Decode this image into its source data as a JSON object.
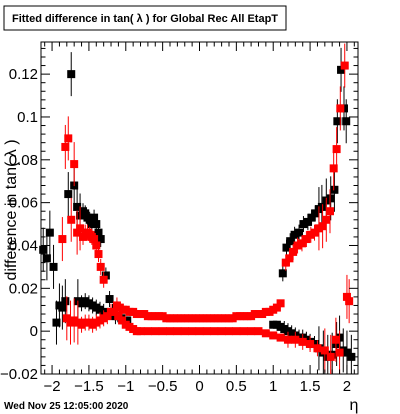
{
  "footer": {
    "timestamp": "Wed Nov 25 12:05:00 2020"
  },
  "chart_data": {
    "type": "scatter",
    "title": "Fitted difference in tan( λ ) for Global Rec All EtapT",
    "xlabel": "η",
    "ylabel": "difference in tan( λ )",
    "xlim": [
      -2.15,
      2.15
    ],
    "ylim": [
      -0.02,
      0.135
    ],
    "x_ticks": [
      -2,
      -1.5,
      -1,
      -0.5,
      0,
      0.5,
      1,
      1.5,
      2
    ],
    "x_tick_labels": [
      "−2",
      "−1.5",
      "−1",
      "−0.5",
      "0",
      "0.5",
      "1",
      "1.5",
      "2"
    ],
    "y_ticks": [
      -0.02,
      0,
      0.02,
      0.04,
      0.06,
      0.08,
      0.1,
      0.12
    ],
    "y_tick_labels": [
      "−0.02",
      "0",
      "0.02",
      "0.04",
      "0.06",
      "0.08",
      "0.1",
      "0.12"
    ],
    "grid": false,
    "legend": "none",
    "colors": {
      "black_series": "#000000",
      "red_series": "#ff0000"
    },
    "series": [
      {
        "color": "#000000",
        "points": [
          [
            -2.12,
            0.038
          ],
          [
            -2.07,
            0.034
          ],
          [
            -2.03,
            0.046
          ],
          [
            -1.98,
            0.03
          ],
          [
            -1.94,
            0.004
          ],
          [
            -1.9,
            0.012
          ],
          [
            -1.86,
            0.011
          ],
          [
            -1.82,
            0.014
          ],
          [
            -1.78,
            0.064
          ],
          [
            -1.74,
            0.12
          ],
          [
            -1.7,
            0.068
          ],
          [
            -1.66,
            0.058
          ],
          [
            -1.62,
            0.054
          ],
          [
            -1.58,
            0.056
          ],
          [
            -1.55,
            0.055
          ],
          [
            -1.52,
            0.053
          ],
          [
            -1.49,
            0.052
          ],
          [
            -1.46,
            0.05
          ],
          [
            -1.43,
            0.053
          ],
          [
            -1.4,
            0.05
          ],
          [
            -1.37,
            0.046
          ],
          [
            -1.34,
            0.043
          ],
          [
            -1.27,
            0.026
          ],
          [
            -1.22,
            0.015
          ],
          [
            -1.18,
            0.009
          ],
          [
            -1.14,
            0.007
          ],
          [
            -1.1,
            0.007
          ],
          [
            -1.06,
            0.006
          ],
          [
            -1.02,
            0.005
          ],
          [
            -0.98,
            0.005
          ],
          [
            1.0,
            0.003
          ],
          [
            1.05,
            0.003
          ],
          [
            1.1,
            0.002
          ],
          [
            1.15,
            0.001
          ],
          [
            1.2,
            0.0
          ],
          [
            1.25,
            -0.001
          ],
          [
            1.3,
            -0.002
          ],
          [
            1.35,
            -0.003
          ],
          [
            1.4,
            -0.003
          ],
          [
            1.45,
            -0.004
          ],
          [
            1.5,
            -0.005
          ],
          [
            1.56,
            -0.006
          ],
          [
            1.62,
            -0.008
          ],
          [
            1.68,
            -0.01
          ],
          [
            1.74,
            -0.012
          ],
          [
            1.8,
            -0.011
          ],
          [
            1.86,
            -0.006
          ],
          [
            1.9,
            -0.003
          ],
          [
            1.95,
            -0.009
          ],
          [
            2.0,
            -0.01
          ],
          [
            2.06,
            -0.012
          ],
          [
            -1.65,
            0.014
          ],
          [
            -1.6,
            0.013
          ],
          [
            -1.55,
            0.014
          ],
          [
            -1.5,
            0.013
          ],
          [
            -1.45,
            0.012
          ],
          [
            -1.4,
            0.011
          ],
          [
            -1.35,
            0.01
          ],
          [
            -1.3,
            0.009
          ],
          [
            1.13,
            0.027
          ],
          [
            1.18,
            0.039
          ],
          [
            1.23,
            0.042
          ],
          [
            1.29,
            0.045
          ],
          [
            1.35,
            0.046
          ],
          [
            1.41,
            0.05
          ],
          [
            1.47,
            0.051
          ],
          [
            1.52,
            0.053
          ],
          [
            1.57,
            0.055
          ],
          [
            1.62,
            0.057
          ],
          [
            1.66,
            0.058
          ],
          [
            1.72,
            0.061
          ],
          [
            1.78,
            0.062
          ],
          [
            1.83,
            0.066
          ],
          [
            1.87,
            0.098
          ],
          [
            1.92,
            0.122
          ],
          [
            1.96,
            0.104
          ],
          [
            1.99,
            0.098
          ]
        ]
      },
      {
        "color": "#ff0000",
        "points": [
          [
            -1.86,
            0.043
          ],
          [
            -1.82,
            0.086
          ],
          [
            -1.78,
            0.09
          ],
          [
            -1.74,
            0.052
          ],
          [
            -1.7,
            0.078
          ],
          [
            -1.66,
            0.046
          ],
          [
            -1.62,
            0.048
          ],
          [
            -1.58,
            0.044
          ],
          [
            -1.55,
            0.046
          ],
          [
            -1.52,
            0.046
          ],
          [
            -1.49,
            0.045
          ],
          [
            -1.46,
            0.044
          ],
          [
            -1.43,
            0.043
          ],
          [
            -1.4,
            0.04
          ],
          [
            -1.37,
            0.036
          ],
          [
            -1.34,
            0.03
          ],
          [
            -1.3,
            0.024
          ],
          [
            -1.8,
            0.006
          ],
          [
            -1.75,
            0.004
          ],
          [
            -1.7,
            0.005
          ],
          [
            -1.65,
            0.004
          ],
          [
            -1.6,
            0.003
          ],
          [
            -1.55,
            0.004
          ],
          [
            -1.5,
            0.004
          ],
          [
            -1.45,
            0.003
          ],
          [
            -1.4,
            0.004
          ],
          [
            -1.35,
            0.005
          ],
          [
            -1.3,
            0.006
          ],
          [
            -1.25,
            0.007
          ],
          [
            -1.2,
            0.009
          ],
          [
            -1.15,
            0.009
          ],
          [
            -1.1,
            0.007
          ],
          [
            -1.05,
            0.005
          ],
          [
            -1.0,
            0.003
          ],
          [
            -0.95,
            0.002
          ],
          [
            -0.9,
            0.001
          ],
          [
            -0.85,
            0.0
          ],
          [
            -1.12,
            0.012
          ],
          [
            -1.08,
            0.011
          ],
          [
            -1.04,
            0.01
          ],
          [
            -1.0,
            0.01
          ],
          [
            -0.95,
            0.009
          ],
          [
            -0.9,
            0.009
          ],
          [
            -0.85,
            0.008
          ],
          [
            -0.8,
            0.008
          ],
          [
            -0.75,
            0.008
          ],
          [
            -0.7,
            0.007
          ],
          [
            -0.65,
            0.007
          ],
          [
            -0.6,
            0.007
          ],
          [
            -0.55,
            0.007
          ],
          [
            -0.5,
            0.007
          ],
          [
            -0.45,
            0.006
          ],
          [
            -0.4,
            0.006
          ],
          [
            -0.35,
            0.006
          ],
          [
            -0.3,
            0.006
          ],
          [
            -0.25,
            0.006
          ],
          [
            -0.2,
            0.006
          ],
          [
            -0.15,
            0.006
          ],
          [
            -0.1,
            0.006
          ],
          [
            -0.05,
            0.006
          ],
          [
            0.0,
            0.006
          ],
          [
            0.05,
            0.006
          ],
          [
            0.1,
            0.006
          ],
          [
            0.15,
            0.006
          ],
          [
            0.2,
            0.006
          ],
          [
            0.25,
            0.006
          ],
          [
            0.3,
            0.006
          ],
          [
            0.35,
            0.006
          ],
          [
            0.4,
            0.006
          ],
          [
            0.45,
            0.006
          ],
          [
            0.5,
            0.007
          ],
          [
            0.55,
            0.007
          ],
          [
            0.6,
            0.007
          ],
          [
            0.65,
            0.007
          ],
          [
            0.7,
            0.007
          ],
          [
            0.75,
            0.008
          ],
          [
            0.8,
            0.008
          ],
          [
            0.85,
            0.008
          ],
          [
            0.9,
            0.009
          ],
          [
            0.95,
            0.009
          ],
          [
            1.0,
            0.01
          ],
          [
            1.05,
            0.011
          ],
          [
            1.1,
            0.013
          ],
          [
            -0.8,
            0.0
          ],
          [
            -0.7,
            0.0
          ],
          [
            -0.6,
            0.0
          ],
          [
            -0.5,
            0.0
          ],
          [
            -0.4,
            0.0
          ],
          [
            -0.3,
            0.0
          ],
          [
            -0.2,
            0.0
          ],
          [
            -0.1,
            0.0
          ],
          [
            0.0,
            0.0
          ],
          [
            0.1,
            0.0
          ],
          [
            0.2,
            0.0
          ],
          [
            0.3,
            0.0
          ],
          [
            0.4,
            0.0
          ],
          [
            0.5,
            0.0
          ],
          [
            0.6,
            0.0
          ],
          [
            0.7,
            0.0
          ],
          [
            0.8,
            0.0
          ],
          [
            0.9,
            -0.001
          ],
          [
            1.0,
            -0.002
          ],
          [
            1.1,
            -0.003
          ],
          [
            1.2,
            -0.004
          ],
          [
            1.3,
            -0.004
          ],
          [
            1.4,
            -0.005
          ],
          [
            1.5,
            -0.006
          ],
          [
            1.6,
            -0.008
          ],
          [
            1.7,
            -0.009
          ],
          [
            1.78,
            -0.012
          ],
          [
            1.85,
            -0.004
          ],
          [
            1.9,
            -0.01
          ],
          [
            1.17,
            0.032
          ],
          [
            1.22,
            0.034
          ],
          [
            1.27,
            0.037
          ],
          [
            1.33,
            0.04
          ],
          [
            1.39,
            0.041
          ],
          [
            1.45,
            0.043
          ],
          [
            1.51,
            0.045
          ],
          [
            1.56,
            0.046
          ],
          [
            1.62,
            0.048
          ],
          [
            1.67,
            0.049
          ],
          [
            1.72,
            0.052
          ],
          [
            1.77,
            0.056
          ],
          [
            1.82,
            0.076
          ],
          [
            1.86,
            0.085
          ],
          [
            1.91,
            0.104
          ],
          [
            1.97,
            0.124
          ],
          [
            2.0,
            0.016
          ],
          [
            2.03,
            0.014
          ]
        ]
      }
    ]
  }
}
